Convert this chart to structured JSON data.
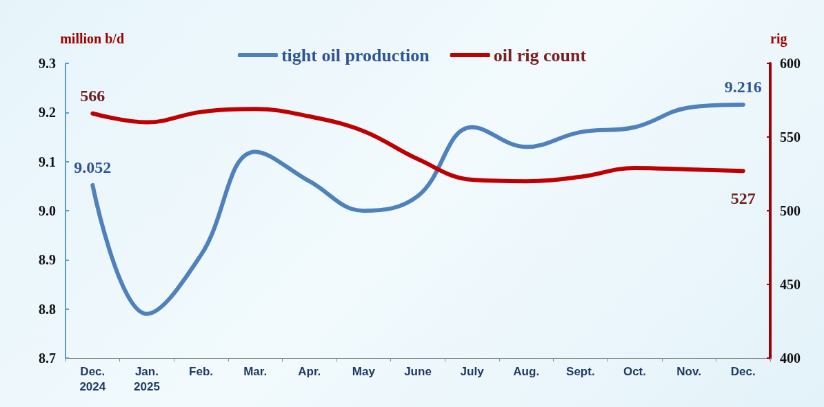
{
  "chart_data": {
    "type": "line",
    "categories": [
      "Dec. 2024",
      "Jan. 2025",
      "Feb.",
      "Mar.",
      "Apr.",
      "May",
      "June",
      "July",
      "Aug.",
      "Sept.",
      "Oct.",
      "Nov.",
      "Dec."
    ],
    "ylabel": "million b/d",
    "y2label": "rig",
    "ylim": [
      8.7,
      9.3
    ],
    "yticks": [
      8.7,
      8.8,
      8.9,
      {
        "value": 9,
        "label": "9.0"
      },
      9.1,
      9.2,
      9.3
    ],
    "y2lim": [
      400,
      600
    ],
    "y2ticks": [
      400,
      450,
      500,
      550,
      600
    ],
    "series": [
      {
        "name": "tight oil production",
        "color": "#4f81bd",
        "values": [
          9.052,
          8.79,
          8.91,
          9.12,
          9.06,
          9.0,
          9.03,
          9.17,
          9.13,
          9.16,
          9.17,
          9.21,
          9.216
        ],
        "value_labels": [
          "9.052",
          null,
          null,
          null,
          null,
          null,
          null,
          null,
          null,
          null,
          null,
          null,
          "9.216"
        ]
      },
      {
        "name": "oil rig count",
        "color": "#c00000",
        "axis": "y2",
        "values": [
          566,
          560,
          567,
          569,
          564,
          554,
          535,
          521,
          520,
          523,
          529,
          528,
          527
        ],
        "value_labels": [
          "566",
          null,
          null,
          null,
          null,
          null,
          null,
          null,
          null,
          null,
          null,
          null,
          "527"
        ]
      }
    ],
    "legend": "top",
    "grid": false,
    "marker": "none",
    "line_style": "solid"
  }
}
